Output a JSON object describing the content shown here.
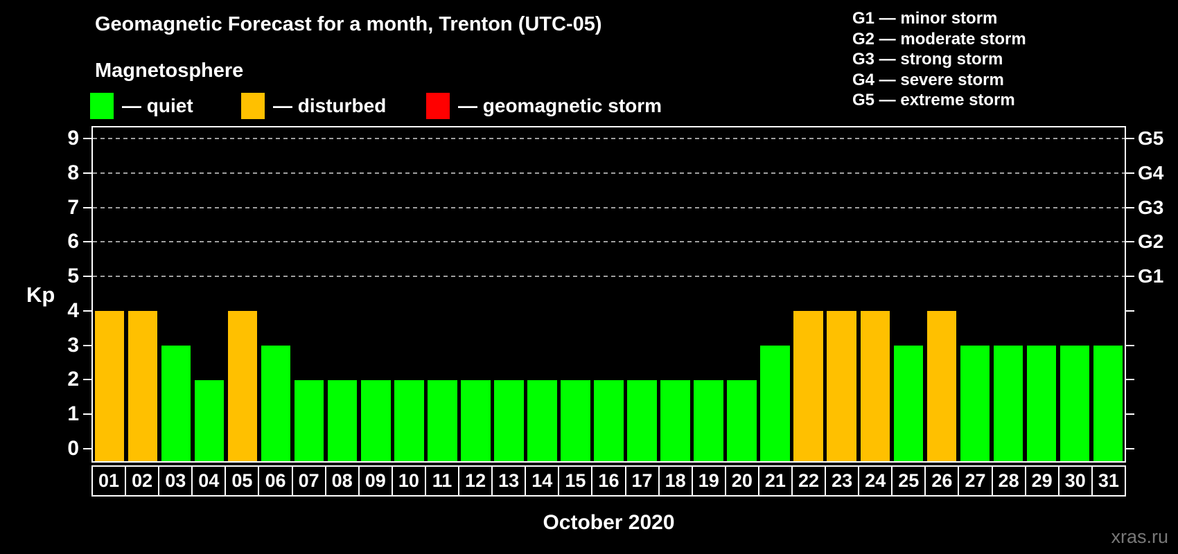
{
  "header": {
    "title": "Geomagnetic Forecast for a month, Trenton (UTC-05)",
    "subtitle": "Magnetosphere"
  },
  "legend": {
    "items": [
      {
        "label": "— quiet",
        "status": "quiet"
      },
      {
        "label": "— disturbed",
        "status": "disturbed"
      },
      {
        "label": "— geomagnetic storm",
        "status": "storm"
      }
    ]
  },
  "g_legend": {
    "items": [
      "G1 — minor storm",
      "G2 — moderate storm",
      "G3 — strong storm",
      "G4 — severe storm",
      "G5 — extreme storm"
    ]
  },
  "y_axis": {
    "label": "Kp",
    "ticks": [
      0,
      1,
      2,
      3,
      4,
      5,
      6,
      7,
      8,
      9
    ]
  },
  "right_axis": {
    "labels": [
      {
        "kp": 5,
        "label": "G1"
      },
      {
        "kp": 6,
        "label": "G2"
      },
      {
        "kp": 7,
        "label": "G3"
      },
      {
        "kp": 8,
        "label": "G4"
      },
      {
        "kp": 9,
        "label": "G5"
      }
    ]
  },
  "x_axis": {
    "month_label": "October 2020"
  },
  "watermark": "xras.ru",
  "colors": {
    "quiet": "#00ff00",
    "disturbed": "#ffc000",
    "storm": "#ff0000",
    "background": "#000000",
    "axis": "#ffffff",
    "grid": "#a0a0a0",
    "watermark": "#787878"
  },
  "chart_data": {
    "type": "bar",
    "title": "Geomagnetic Forecast for a month, Trenton (UTC-05)",
    "categories": [
      "01",
      "02",
      "03",
      "04",
      "05",
      "06",
      "07",
      "08",
      "09",
      "10",
      "11",
      "12",
      "13",
      "14",
      "15",
      "16",
      "17",
      "18",
      "19",
      "20",
      "21",
      "22",
      "23",
      "24",
      "25",
      "26",
      "27",
      "28",
      "29",
      "30",
      "31"
    ],
    "values": [
      4,
      4,
      3,
      2,
      4,
      3,
      2,
      2,
      2,
      2,
      2,
      2,
      2,
      2,
      2,
      2,
      2,
      2,
      2,
      2,
      3,
      4,
      4,
      4,
      3,
      4,
      3,
      3,
      3,
      3,
      3
    ],
    "statuses": [
      "disturbed",
      "disturbed",
      "quiet",
      "quiet",
      "disturbed",
      "quiet",
      "quiet",
      "quiet",
      "quiet",
      "quiet",
      "quiet",
      "quiet",
      "quiet",
      "quiet",
      "quiet",
      "quiet",
      "quiet",
      "quiet",
      "quiet",
      "quiet",
      "quiet",
      "disturbed",
      "disturbed",
      "disturbed",
      "quiet",
      "disturbed",
      "quiet",
      "quiet",
      "quiet",
      "quiet",
      "quiet"
    ],
    "xlabel": "October 2020",
    "ylabel": "Kp",
    "ylim": [
      0,
      9
    ],
    "yticks": [
      0,
      1,
      2,
      3,
      4,
      5,
      6,
      7,
      8,
      9
    ],
    "gridlines_at": [
      5,
      6,
      7,
      8,
      9
    ],
    "grid": "dashed",
    "legend_position": "top"
  }
}
